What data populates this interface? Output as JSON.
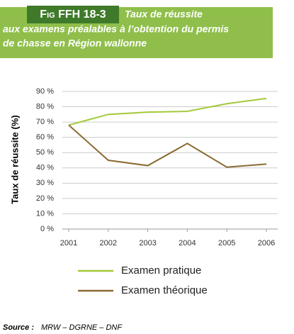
{
  "chart_data": {
    "type": "line",
    "figure_label": "Fig FFH 18-3",
    "title": [
      "Taux de réussite",
      "aux examens préalables à l’obtention du permis",
      "de chasse en Région wallonne"
    ],
    "ylabel": "Taux de réussite (%)",
    "categories": [
      "2001",
      "2002",
      "2003",
      "2004",
      "2005",
      "2006"
    ],
    "series": [
      {
        "name": "Examen pratique",
        "color": "#a4c93a",
        "values": [
          68,
          75,
          76.5,
          77,
          82,
          85.5
        ]
      },
      {
        "name": "Examen théorique",
        "color": "#8a6a32",
        "values": [
          68,
          45,
          41.5,
          56,
          40.5,
          42.5
        ]
      }
    ],
    "ylim": [
      0,
      90
    ],
    "yticks": [
      {
        "value": 0,
        "label": "0 %"
      },
      {
        "value": 10,
        "label": "10 %"
      },
      {
        "value": 20,
        "label": "20 %"
      },
      {
        "value": 30,
        "label": "30 %"
      },
      {
        "value": 40,
        "label": "40 %"
      },
      {
        "value": 50,
        "label": "50 %"
      },
      {
        "value": 60,
        "label": "60 %"
      },
      {
        "value": 70,
        "label": "70 %"
      },
      {
        "value": 80,
        "label": "80 %"
      },
      {
        "value": 90,
        "label": "90 %"
      }
    ],
    "grid": true,
    "legend": "bottom"
  },
  "source": {
    "label": "Source :",
    "text": "MRW – DGRNE – DNF"
  }
}
